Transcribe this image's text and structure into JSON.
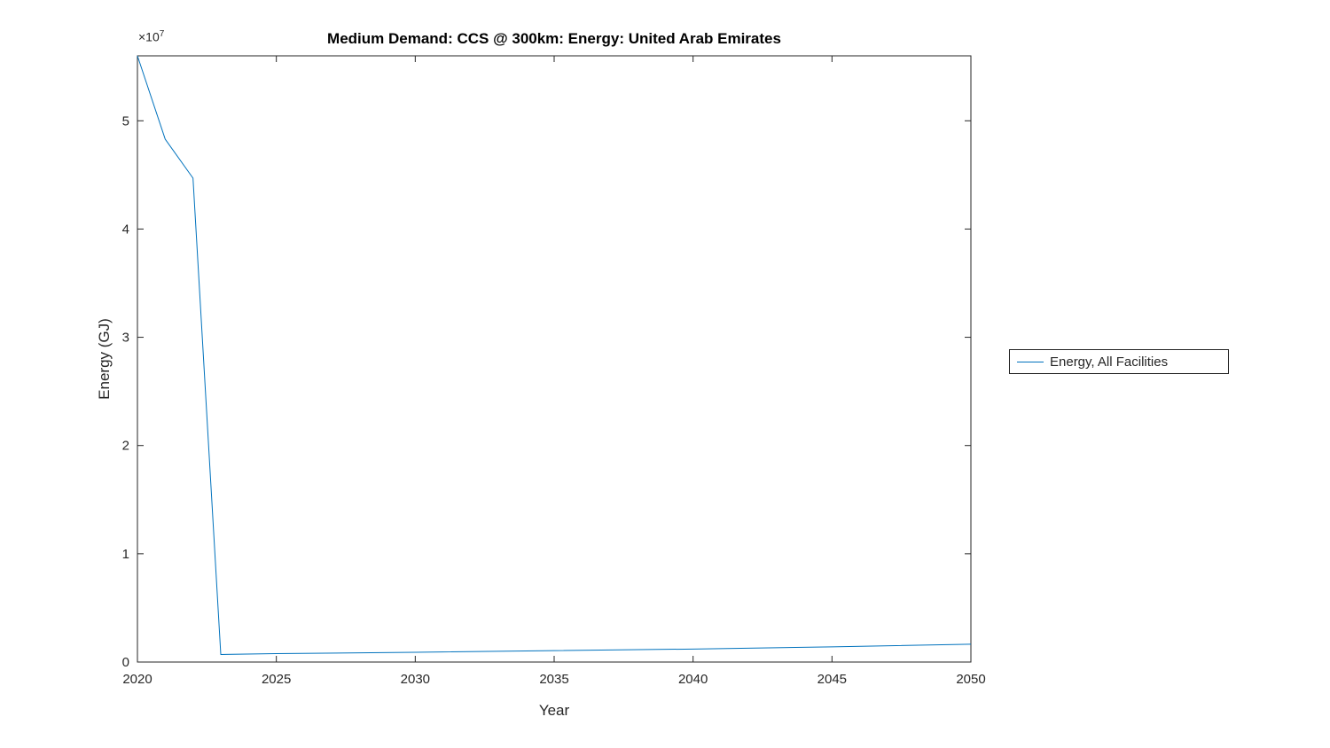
{
  "chart_data": {
    "type": "line",
    "title": "Medium Demand: CCS @ 300km: Energy: United Arab Emirates",
    "xlabel": "Year",
    "ylabel": "Energy (GJ)",
    "y_multiplier_base": "×10",
    "y_multiplier_exp": "7",
    "xlim": [
      2020,
      2050
    ],
    "ylim": [
      0,
      56000000
    ],
    "xticks": [
      2020,
      2025,
      2030,
      2035,
      2040,
      2045,
      2050
    ],
    "xtick_labels": [
      "2020",
      "2025",
      "2030",
      "2035",
      "2040",
      "2045",
      "2050"
    ],
    "yticks": [
      0,
      10000000,
      20000000,
      30000000,
      40000000,
      50000000
    ],
    "ytick_labels": [
      "0",
      "1",
      "2",
      "3",
      "4",
      "5"
    ],
    "grid": false,
    "legend": {
      "position": "right-outside",
      "entries": [
        {
          "label": "Energy, All Facilities",
          "color": "#0072BD"
        }
      ]
    },
    "series": [
      {
        "name": "Energy, All Facilities",
        "color": "#0072BD",
        "x": [
          2020,
          2021,
          2022,
          2023,
          2025,
          2030,
          2035,
          2040,
          2045,
          2050
        ],
        "y": [
          56000000,
          48300000,
          44700000,
          700000,
          780000,
          900000,
          1050000,
          1200000,
          1400000,
          1650000
        ]
      }
    ],
    "axis_color": "#262626"
  }
}
